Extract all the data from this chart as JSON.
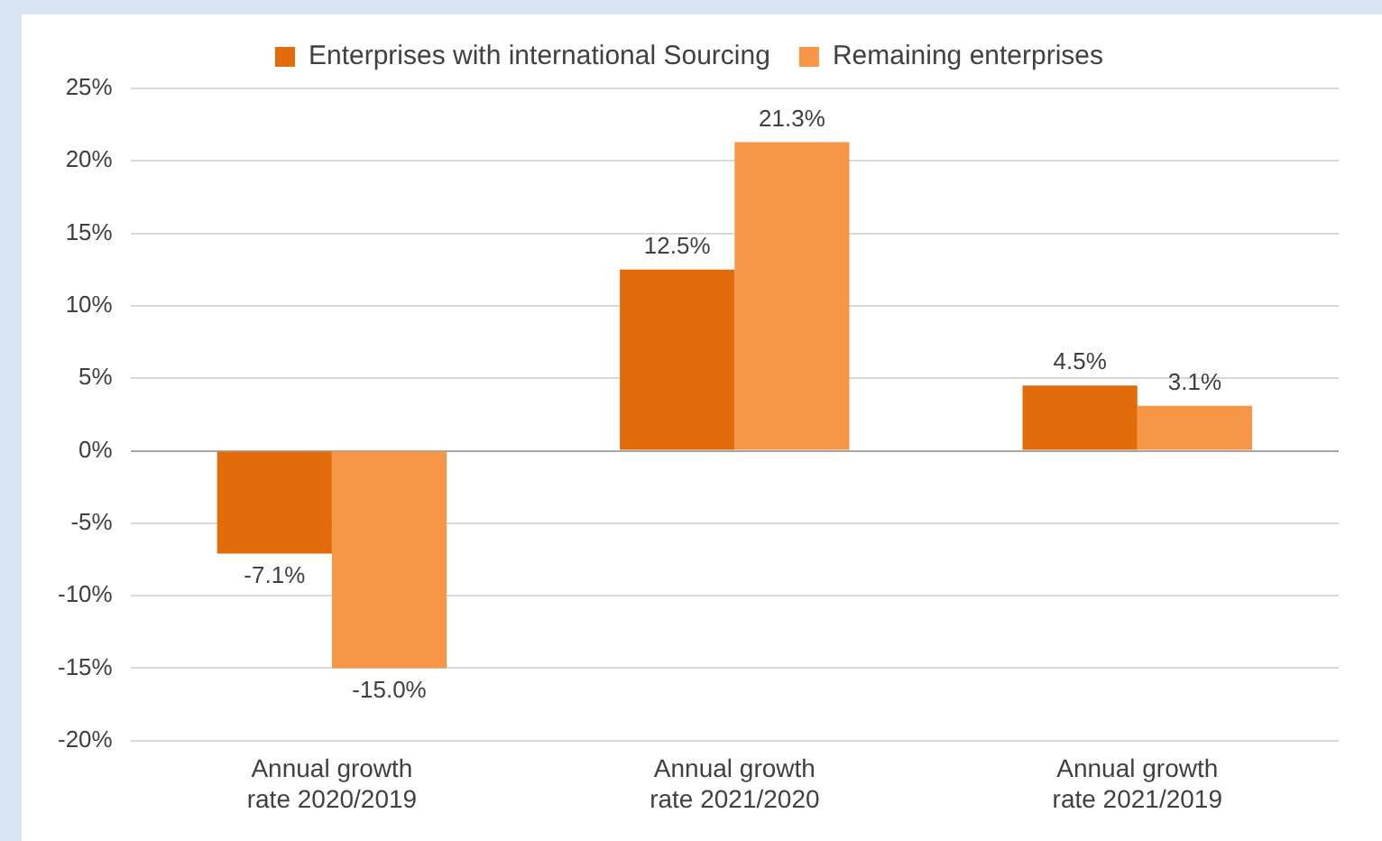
{
  "chart_data": {
    "type": "bar",
    "categories": [
      "Annual growth rate 2020/2019",
      "Annual growth rate 2021/2020",
      "Annual growth rate 2021/2019"
    ],
    "series": [
      {
        "name": "Enterprises with international Sourcing",
        "color": "#e26b0a",
        "values": [
          -7.1,
          12.5,
          4.5
        ],
        "value_labels": [
          "-7.1%",
          "12.5%",
          "4.5%"
        ]
      },
      {
        "name": "Remaining enterprises",
        "color": "#f79646",
        "values": [
          -15.0,
          21.3,
          3.1
        ],
        "value_labels": [
          "-15.0%",
          "21.3%",
          "3.1%"
        ]
      }
    ],
    "ylim": [
      -20,
      25
    ],
    "yticks": [
      {
        "value": -20,
        "label": "-20%"
      },
      {
        "value": -15,
        "label": "-15%"
      },
      {
        "value": -10,
        "label": "-10%"
      },
      {
        "value": -5,
        "label": "-5%"
      },
      {
        "value": 0,
        "label": "0%"
      },
      {
        "value": 5,
        "label": "5%"
      },
      {
        "value": 10,
        "label": "10%"
      },
      {
        "value": 15,
        "label": "15%"
      },
      {
        "value": 20,
        "label": "20%"
      },
      {
        "value": 25,
        "label": "25%"
      }
    ],
    "grid": "y",
    "legend": "top"
  }
}
